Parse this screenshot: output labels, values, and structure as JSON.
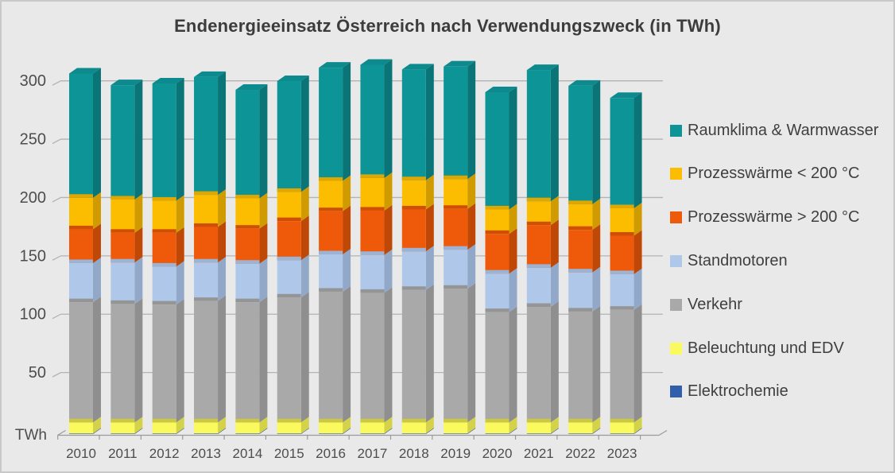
{
  "colors": {
    "background": "#e9e9e9",
    "frame_border": "#c9c9c9",
    "gridline": "#b3b3b3",
    "axis_line": "#9a9a9a",
    "title_color": "#3c3c3c",
    "label_color": "#4d4d4d",
    "legend_text_color": "#3f3f3f"
  },
  "chart_data": {
    "type": "bar",
    "variant": "3d-stacked-column",
    "title": "Endenergieeinsatz Österreich nach Verwendungszweck (in TWh)",
    "unit_label": "TWh",
    "categories": [
      "2010",
      "2011",
      "2012",
      "2013",
      "2014",
      "2015",
      "2016",
      "2017",
      "2018",
      "2019",
      "2020",
      "2021",
      "2022",
      "2023"
    ],
    "series": [
      {
        "name": "Elektrochemie",
        "color": "#315fa9",
        "side": "#264c88",
        "dark": "#2a5394",
        "values": [
          0.5,
          0.5,
          0.5,
          0.5,
          0.5,
          0.5,
          0.5,
          0.5,
          0.5,
          0.5,
          0.5,
          0.5,
          0.5,
          0.5
        ]
      },
      {
        "name": "Beleuchtung und EDV",
        "color": "#fafa5f",
        "side": "#d4d249",
        "dark": "#cdc93e",
        "values": [
          9.5,
          9.5,
          9.5,
          9.5,
          9.5,
          9.5,
          9.5,
          9.5,
          9.5,
          9.5,
          9.5,
          9.5,
          9.5,
          9.5
        ]
      },
      {
        "name": "Verkehr",
        "color": "#a9a9a9",
        "side": "#8f8f8f",
        "dark": "#959595",
        "values": [
          103,
          101.5,
          101,
          104,
          103,
          107,
          112,
          111,
          113.5,
          114.5,
          94.5,
          99,
          95,
          96.5
        ]
      },
      {
        "name": "Standmotoren",
        "color": "#afc8e9",
        "side": "#91a8c9",
        "dark": "#9cb3d3",
        "values": [
          33.5,
          35.5,
          32.5,
          33,
          33,
          32,
          32,
          32.5,
          33,
          33.5,
          33,
          33.5,
          33.5,
          30.5
        ]
      },
      {
        "name": "Prozesswärme > 200 °C",
        "color": "#ee5a0a",
        "side": "#c04806",
        "dark": "#d14e07",
        "values": [
          29,
          25.5,
          29,
          30.5,
          30,
          33.5,
          37,
          38,
          36,
          35,
          34,
          36.5,
          36.5,
          33
        ]
      },
      {
        "name": "Prozesswärme < 200 °C",
        "color": "#fcbd00",
        "side": "#cf9b00",
        "dark": "#dfa700",
        "values": [
          27,
          28.5,
          27.5,
          27.5,
          26,
          25,
          26,
          28,
          25,
          25.5,
          21,
          20.5,
          22,
          23.5
        ]
      },
      {
        "name": "Raumklima & Warmwasser",
        "color": "#0d9497",
        "side": "#0a7477",
        "dark": "#0c8487",
        "top": "#0d8a8d",
        "values": [
          106.5,
          98,
          100.5,
          101,
          93,
          95,
          97,
          97,
          95,
          96.5,
          100.5,
          112.5,
          101.5,
          94.5
        ]
      }
    ],
    "totals": [
      309,
      299,
      300.5,
      306,
      295,
      302.5,
      314,
      316.5,
      312.5,
      315,
      293,
      312,
      298.5,
      288
    ],
    "y_axis": {
      "ticks": [
        50,
        100,
        150,
        200,
        250,
        300
      ],
      "range": [
        0,
        320
      ],
      "gridlines": true
    },
    "x_axis": {
      "tick_marks": true
    },
    "legend": {
      "position": "right",
      "items": [
        {
          "label": "Raumklima & Warmwasser",
          "color": "#0d9497"
        },
        {
          "label": "Prozesswärme < 200 °C",
          "color": "#fcbd00"
        },
        {
          "label": "Prozesswärme > 200 °C",
          "color": "#ee5a0a"
        },
        {
          "label": "Standmotoren",
          "color": "#afc8e9"
        },
        {
          "label": "Verkehr",
          "color": "#a9a9a9"
        },
        {
          "label": "Beleuchtung und EDV",
          "color": "#fafa5f"
        },
        {
          "label": "Elektrochemie",
          "color": "#315fa9"
        }
      ]
    }
  }
}
